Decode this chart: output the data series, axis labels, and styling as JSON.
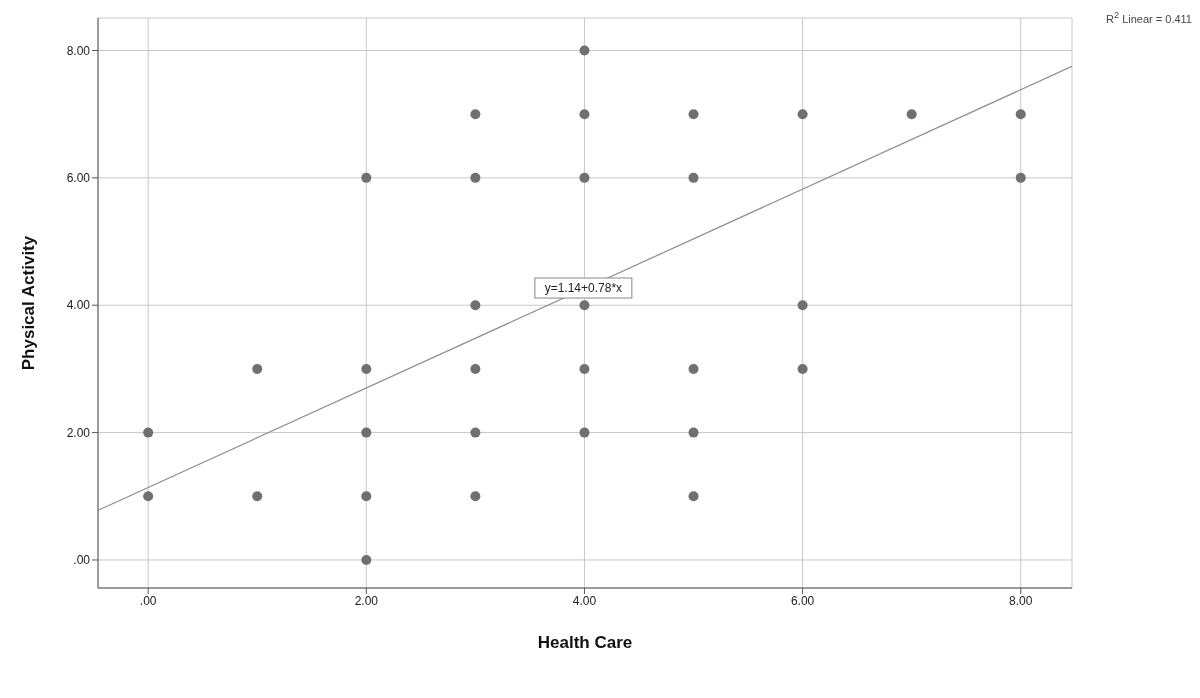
{
  "chart_data": {
    "type": "scatter",
    "xlabel": "Health Care",
    "ylabel": "Physical Activity",
    "xlim": [
      -0.46,
      8.47
    ],
    "ylim": [
      -0.44,
      8.51
    ],
    "xticks": [
      {
        "value": 0,
        "label": ".00"
      },
      {
        "value": 2,
        "label": "2.00"
      },
      {
        "value": 4,
        "label": "4.00"
      },
      {
        "value": 6,
        "label": "6.00"
      },
      {
        "value": 8,
        "label": "8.00"
      }
    ],
    "yticks": [
      {
        "value": 0,
        "label": ".00"
      },
      {
        "value": 2,
        "label": "2.00"
      },
      {
        "value": 4,
        "label": "4.00"
      },
      {
        "value": 6,
        "label": "6.00"
      },
      {
        "value": 8,
        "label": "8.00"
      }
    ],
    "grid": true,
    "series": [
      {
        "marker": "circle",
        "color": "#707070",
        "x": [
          0,
          0,
          1,
          1,
          2,
          2,
          2,
          2,
          2,
          3,
          3,
          3,
          3,
          3,
          3,
          4,
          4,
          4,
          4,
          4,
          4,
          5,
          5,
          5,
          5,
          5,
          6,
          6,
          6,
          7,
          8,
          8
        ],
        "values": [
          2,
          1,
          3,
          1,
          6,
          3,
          2,
          1,
          0,
          7,
          6,
          4,
          3,
          2,
          1,
          8,
          7,
          6,
          4,
          3,
          2,
          7,
          6,
          3,
          2,
          1,
          7,
          4,
          3,
          7,
          7,
          6
        ]
      },
      {
        "type": "line",
        "marker": "none",
        "color": "#8c8c8c",
        "x": [
          -0.46,
          8.47
        ],
        "values": [
          0.78,
          7.75
        ]
      }
    ],
    "annotations": [
      {
        "text": "y=1.14+0.78*x",
        "x": 3.99,
        "y": 4.27
      },
      "R$^{2}$ Linear = 0.411"
    ]
  }
}
